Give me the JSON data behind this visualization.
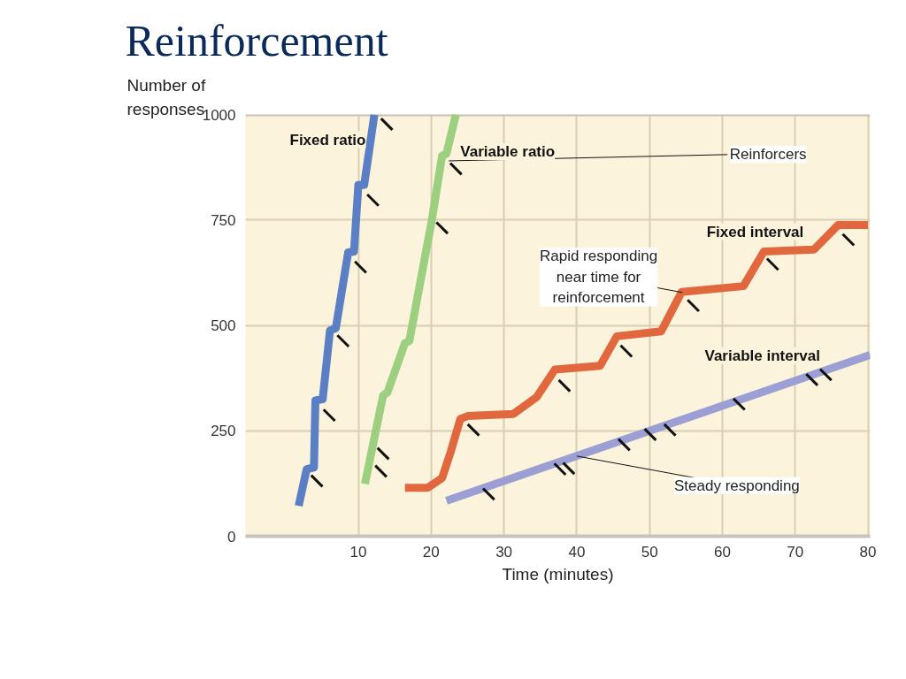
{
  "chart_data": {
    "type": "line",
    "title": "Reinforcement",
    "xlabel": "Time (minutes)",
    "ylabel": "Number of responses",
    "xlim": [
      -5.5,
      80.3
    ],
    "ylim": [
      0,
      1000
    ],
    "xticks": [
      10,
      20,
      30,
      40,
      50,
      60,
      70,
      80
    ],
    "yticks": [
      0,
      250,
      500,
      750,
      1000
    ],
    "grid": true,
    "series": [
      {
        "name": "Fixed ratio",
        "color": "#5b7fc4",
        "x": [
          1.8,
          2.9,
          3.9,
          4.1,
          5.1,
          6.1,
          6.9,
          8.6,
          9.4,
          10.0,
          10.8,
          12.2
        ],
        "values": [
          72,
          159,
          163,
          322,
          325,
          488,
          493,
          673,
          675,
          833,
          833,
          1000
        ]
      },
      {
        "name": "Variable ratio",
        "color": "#9ccf80",
        "x": [
          10.9,
          13.4,
          14.0,
          16.4,
          17.0,
          20.1,
          21.5,
          22.1,
          23.4
        ],
        "values": [
          124,
          334,
          341,
          458,
          463,
          750,
          902,
          907,
          1000
        ]
      },
      {
        "name": "Fixed interval",
        "color": "#e0673e",
        "x": [
          16.4,
          19.5,
          21.5,
          22.7,
          24.0,
          25.0,
          31.3,
          34.5,
          37.0,
          43.2,
          45.5,
          51.6,
          54.4,
          62.9,
          65.7,
          72.6,
          75.9,
          80.0
        ],
        "values": [
          115,
          115,
          138,
          201,
          278,
          285,
          290,
          330,
          395,
          404,
          474,
          486,
          579,
          593,
          675,
          680,
          738,
          738
        ]
      },
      {
        "name": "Variable interval",
        "color": "#9b9fd4",
        "x": [
          22.1,
          80.3
        ],
        "values": [
          84,
          430
        ]
      },
      {
        "type": "scatter",
        "color": "#111111",
        "x": [
          4.3,
          6.0,
          7.9,
          10.3,
          12.0,
          13.9,
          13.1,
          13.4,
          21.5,
          23.4,
          25.8,
          38.3,
          46.8,
          56.0,
          66.9,
          77.3,
          27.9,
          37.7,
          38.9,
          46.5,
          50.1,
          52.8,
          62.3,
          72.3,
          74.2
        ],
        "values": [
          131,
          287,
          463,
          638,
          797,
          977,
          154,
          196,
          731,
          871,
          252,
          357,
          439,
          547,
          645,
          703,
          100,
          159,
          161,
          217,
          241,
          252,
          313,
          371,
          383
        ]
      }
    ],
    "annotations": [
      {
        "text": "Reinforcers",
        "x": 22.4,
        "y": 890
      },
      {
        "text": "Rapid responding\nnear time for\nreinforcement",
        "x": 54.5,
        "y": 578
      },
      {
        "text": "Steady responding",
        "x": 40,
        "y": 190
      }
    ]
  }
}
